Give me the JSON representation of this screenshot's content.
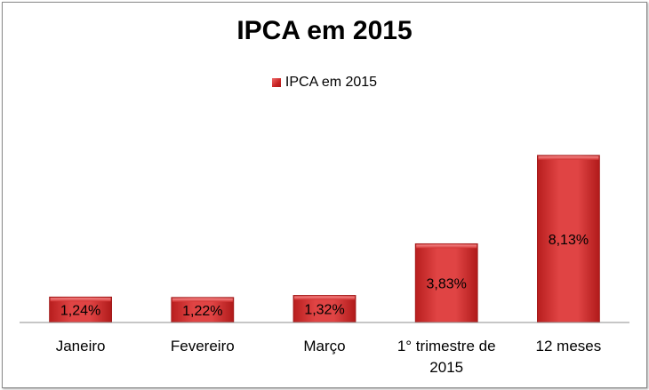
{
  "chart_data": {
    "type": "bar",
    "title": "IPCA em 2015",
    "legend": {
      "position": "top",
      "entries": [
        "IPCA em 2015"
      ]
    },
    "categories": [
      [
        "Janeiro"
      ],
      [
        "Fevereiro"
      ],
      [
        "Março"
      ],
      [
        "1° trimestre de",
        "2015"
      ],
      [
        "12 meses"
      ]
    ],
    "series": [
      {
        "name": "IPCA em 2015",
        "values": [
          1.24,
          1.22,
          1.32,
          3.83,
          8.13
        ],
        "labels": [
          "1,24%",
          "1,22%",
          "1,32%",
          "3,83%",
          "8,13%"
        ],
        "color": "#d63a3a"
      }
    ],
    "ylim": [
      0,
      10.5
    ],
    "grid": false
  }
}
